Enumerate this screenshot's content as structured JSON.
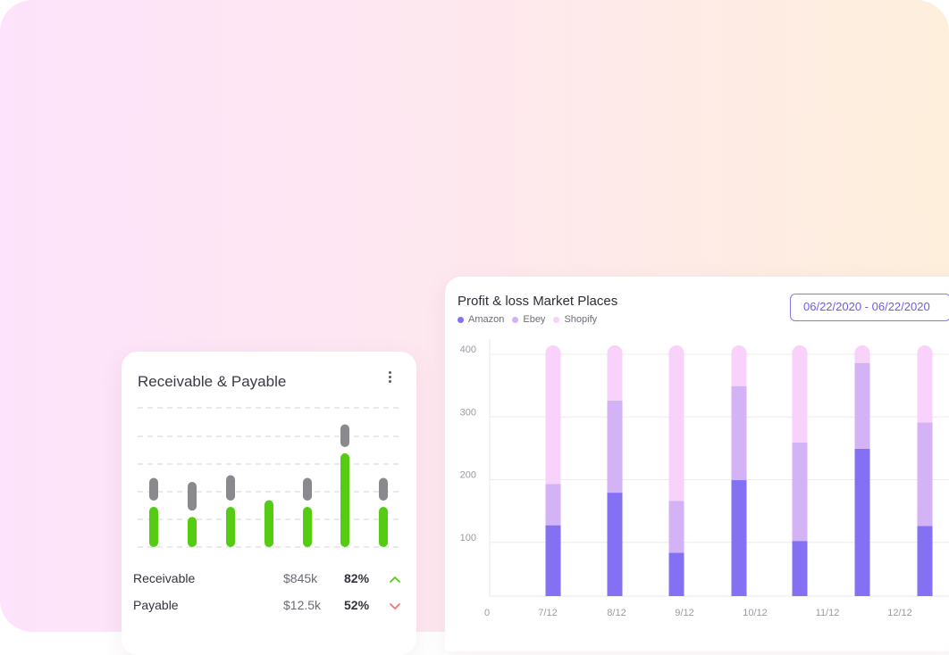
{
  "colors": {
    "amazon": "#8370f2",
    "ebey": "#d3b2f6",
    "shopify": "#f8d2fa",
    "receivable": "#55cc12",
    "payable": "#8a8a8e",
    "up": "#55cc12",
    "down": "#f07575"
  },
  "profit_loss": {
    "title": "Profit & loss Market Places",
    "date_range": "06/22/2020 - 06/22/2020",
    "legend": [
      {
        "label": "Amazon",
        "color_key": "amazon"
      },
      {
        "label": "Ebey",
        "color_key": "ebey"
      },
      {
        "label": "Shopify",
        "color_key": "shopify"
      }
    ]
  },
  "receivable_payable": {
    "title": "Receivable & Payable",
    "menu_icon": "kebab-menu-icon",
    "rows": [
      {
        "label": "Receivable",
        "amount": "$845k",
        "percent": "82%",
        "trend": "up",
        "icon": "chevron-up-icon"
      },
      {
        "label": "Payable",
        "amount": "$12.5k",
        "percent": "52%",
        "trend": "down",
        "icon": "chevron-down-icon"
      }
    ]
  },
  "chart_data": [
    {
      "type": "bar",
      "stacked": true,
      "title": "Profit & loss Market Places",
      "x_ticks": [
        "0",
        "7/12",
        "8/12",
        "9/12",
        "10/12",
        "11/12",
        "12/12"
      ],
      "y_ticks": [
        100,
        200,
        300,
        400
      ],
      "ylim": [
        0,
        400
      ],
      "grid": true,
      "legend_position": "top-left",
      "series": [
        {
          "name": "Amazon",
          "values": [
            113,
            165,
            69,
            185,
            88,
            235,
            112
          ]
        },
        {
          "name": "Ebey",
          "values": [
            66,
            147,
            83,
            150,
            157,
            137,
            165
          ]
        },
        {
          "name": "Shopify",
          "values": [
            221,
            88,
            248,
            65,
            155,
            28,
            123
          ]
        }
      ]
    },
    {
      "type": "bar",
      "title": "Receivable & Payable",
      "grid": true,
      "series": [
        {
          "name": "Receivable",
          "values": [
            6,
            4.5,
            6,
            7,
            6,
            14,
            6
          ]
        },
        {
          "name": "Payable",
          "values": [
            3.4,
            4.3,
            3.8,
            0,
            3.4,
            3.4,
            3.4
          ]
        }
      ]
    }
  ]
}
